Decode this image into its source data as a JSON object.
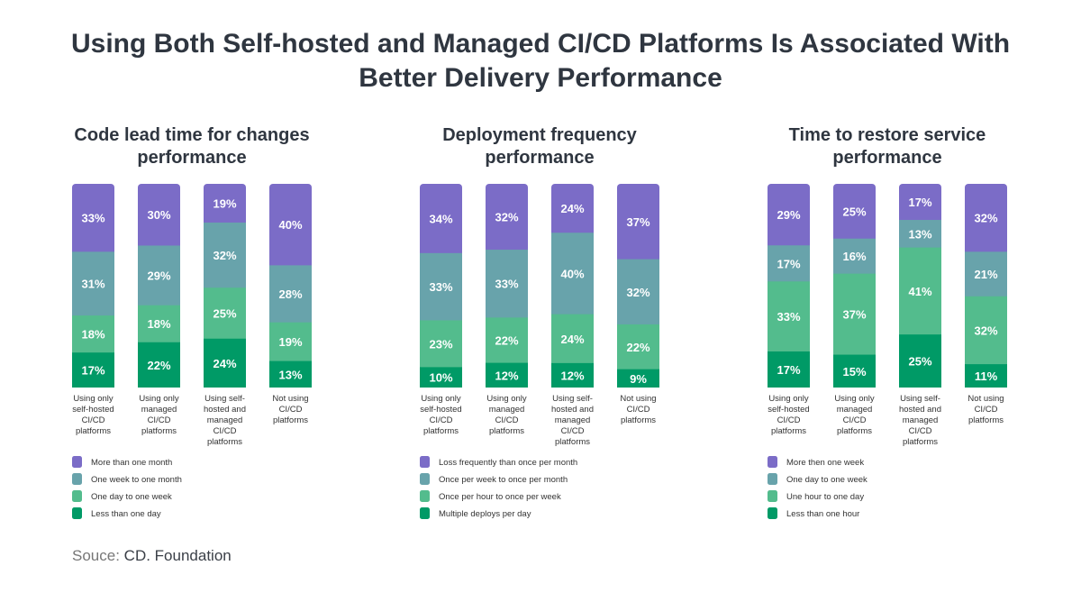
{
  "title_line1": "Using Both Self-hosted and Managed CI/CD Platforms Is Associated With",
  "title_line2": "Better Delivery Performance",
  "source_label": "Souce:",
  "source_name": "CD. Foundation",
  "colors": [
    "#7b6cc7",
    "#68a3ab",
    "#53bc8d",
    "#009a66"
  ],
  "chart_data": [
    {
      "type": "bar",
      "stacked": true,
      "title": [
        "Code lead time for changes",
        "performance"
      ],
      "categories": [
        [
          "Using only",
          "self-hosted",
          "CI/CD",
          "platforms"
        ],
        [
          "Using only",
          "managed",
          "CI/CD",
          "platforms"
        ],
        [
          "Using self-",
          "hosted and",
          "managed",
          "CI/CD",
          "platforms"
        ],
        [
          "Not using",
          "CI/CD",
          "platforms"
        ]
      ],
      "series": [
        {
          "name": "More than one month",
          "values": [
            33,
            30,
            19,
            40
          ]
        },
        {
          "name": "One week to one month",
          "values": [
            31,
            29,
            32,
            28
          ]
        },
        {
          "name": "One day to one week",
          "values": [
            18,
            18,
            25,
            19
          ]
        },
        {
          "name": "Less than one day",
          "values": [
            17,
            22,
            24,
            13
          ]
        }
      ],
      "unit": "%",
      "legend": "bottom-left"
    },
    {
      "type": "bar",
      "stacked": true,
      "title": [
        "Deployment frequency",
        "performance"
      ],
      "categories": [
        [
          "Using only",
          "self-hosted",
          "CI/CD",
          "platforms"
        ],
        [
          "Using only",
          "managed",
          "CI/CD",
          "platforms"
        ],
        [
          "Using self-",
          "hosted and",
          "managed",
          "CI/CD",
          "platforms"
        ],
        [
          "Not using",
          "CI/CD",
          "platforms"
        ]
      ],
      "series": [
        {
          "name": "Loss frequently than once per month",
          "values": [
            34,
            32,
            24,
            37
          ]
        },
        {
          "name": "Once per week to once per month",
          "values": [
            33,
            33,
            40,
            32
          ]
        },
        {
          "name": "Once per hour to once per week",
          "values": [
            23,
            22,
            24,
            22
          ]
        },
        {
          "name": "Multiple deploys per day",
          "values": [
            10,
            12,
            12,
            9
          ]
        }
      ],
      "unit": "%",
      "legend": "bottom-left"
    },
    {
      "type": "bar",
      "stacked": true,
      "title": [
        "Time to restore service",
        "performance"
      ],
      "categories": [
        [
          "Using only",
          "self-hosted",
          "CI/CD",
          "platforms"
        ],
        [
          "Using only",
          "managed",
          "CI/CD",
          "platforms"
        ],
        [
          "Using self-",
          "hosted and",
          "managed",
          "CI/CD",
          "platforms"
        ],
        [
          "Not using",
          "CI/CD",
          "platforms"
        ]
      ],
      "series": [
        {
          "name": "More then one week",
          "values": [
            29,
            25,
            17,
            32
          ]
        },
        {
          "name": "One day to one week",
          "values": [
            17,
            16,
            13,
            21
          ]
        },
        {
          "name": "Une hour to one day",
          "values": [
            33,
            37,
            41,
            32
          ]
        },
        {
          "name": "Less than one hour",
          "values": [
            17,
            15,
            25,
            11
          ]
        }
      ],
      "unit": "%",
      "legend": "bottom-left"
    }
  ]
}
